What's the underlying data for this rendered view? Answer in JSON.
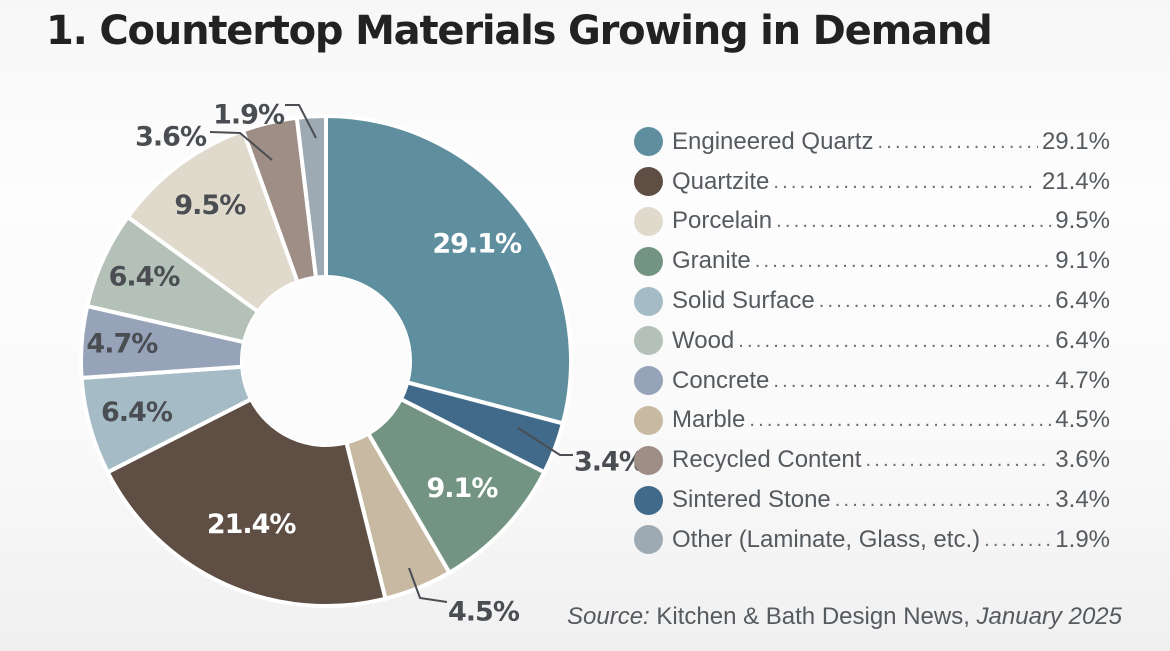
{
  "title": "1. Countertop Materials Growing in Demand",
  "source": {
    "prefix": "Source:",
    "publication": " Kitchen & Bath Design News, ",
    "date": "January 2025"
  },
  "chart_data": {
    "type": "pie",
    "variant": "donut",
    "title": "1. Countertop Materials Growing in Demand",
    "start_angle": "12 o'clock",
    "direction": "clockwise",
    "legend_position": "right",
    "slices": [
      {
        "name": "Engineered Quartz",
        "value": 29.1,
        "label": "29.1%",
        "color": "#5f8f9f",
        "label_color": "#ffffff",
        "callout": false
      },
      {
        "name": "Sintered Stone",
        "value": 3.4,
        "label": "3.4%",
        "color": "#416a8a",
        "label_color": "#4a4d52",
        "callout": true
      },
      {
        "name": "Granite",
        "value": 9.1,
        "label": "9.1%",
        "color": "#739483",
        "label_color": "#ffffff",
        "callout": false
      },
      {
        "name": "Marble",
        "value": 4.5,
        "label": "4.5%",
        "color": "#c8baa2",
        "label_color": "#4a4d52",
        "callout": true
      },
      {
        "name": "Quartzite",
        "value": 21.4,
        "label": "21.4%",
        "color": "#5e4e44",
        "label_color": "#ffffff",
        "callout": false
      },
      {
        "name": "Solid Surface",
        "value": 6.4,
        "label": "6.4%",
        "color": "#a5bcc7",
        "label_color": "#4a4d52",
        "callout": false
      },
      {
        "name": "Concrete",
        "value": 4.7,
        "label": "4.7%",
        "color": "#97a3b9",
        "label_color": "#4a4d52",
        "callout": false
      },
      {
        "name": "Wood",
        "value": 6.4,
        "label": "6.4%",
        "color": "#b3c1b9",
        "label_color": "#4a4d52",
        "callout": false
      },
      {
        "name": "Porcelain",
        "value": 9.5,
        "label": "9.5%",
        "color": "#e0dacd",
        "label_color": "#4a4d52",
        "callout": false
      },
      {
        "name": "Recycled Content",
        "value": 3.6,
        "label": "3.6%",
        "color": "#9e8e86",
        "label_color": "#4a4d52",
        "callout": true
      },
      {
        "name": "Other (Laminate, Glass, etc.)",
        "value": 1.9,
        "label": "1.9%",
        "color": "#9eaab3",
        "label_color": "#4a4d52",
        "callout": true
      }
    ],
    "legend": [
      {
        "name": "Engineered Quartz",
        "value": "29.1%",
        "color": "#5f8f9f"
      },
      {
        "name": "Quartzite",
        "value": "21.4%",
        "color": "#5e4e44"
      },
      {
        "name": "Porcelain",
        "value": "9.5%",
        "color": "#e0dacd"
      },
      {
        "name": "Granite",
        "value": "9.1%",
        "color": "#739483"
      },
      {
        "name": "Solid Surface",
        "value": "6.4%",
        "color": "#a5bcc7"
      },
      {
        "name": "Wood",
        "value": "6.4%",
        "color": "#b3c1b9"
      },
      {
        "name": "Concrete",
        "value": "4.7%",
        "color": "#97a3b9"
      },
      {
        "name": "Marble",
        "value": "4.5%",
        "color": "#c8baa2"
      },
      {
        "name": "Recycled Content",
        "value": "3.6%",
        "color": "#9e8e86"
      },
      {
        "name": "Sintered Stone",
        "value": "3.4%",
        "color": "#416a8a"
      },
      {
        "name": "Other (Laminate, Glass, etc.)",
        "value": "1.9%",
        "color": "#9eaab3"
      }
    ]
  }
}
